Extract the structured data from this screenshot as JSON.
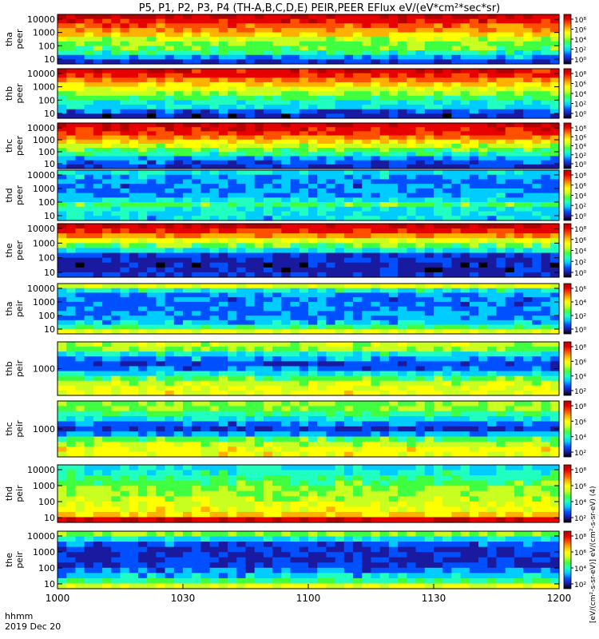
{
  "title": "P5, P1, P2, P3, P4 (TH-A,B,C,D,E) PEIR,PEER EFlux eV/(eV*cm²*sec*sr)",
  "x_axis_label_line1": "hhmm",
  "x_axis_label_line2": "2019 Dec 20",
  "colorbar_side_text": "[eV/(cm²-s-sr-eV)] eV/(cm²-s-sr-eV) (4)",
  "chart_data": {
    "type": "heatmap",
    "x_ticks": [
      "1000",
      "1030",
      "1100",
      "1130",
      "1200"
    ],
    "x_range": [
      "10:00",
      "12:00"
    ],
    "colormap": [
      "#000000",
      "#1a1aa0",
      "#0050ff",
      "#00ccff",
      "#20ffc0",
      "#40ff40",
      "#c8ff20",
      "#ffff00",
      "#ffb000",
      "#ff5000",
      "#e60000",
      "#b40000"
    ],
    "panels": [
      {
        "name": "tha peer",
        "label1": "tha",
        "label2": "peer",
        "y_ticks": [
          "10000",
          "1000",
          "100",
          "10"
        ],
        "cb_ticks": [
          "10⁸",
          "10⁶",
          "10⁴",
          "10²",
          "10⁰"
        ],
        "level_profile": [
          0.95,
          0.9,
          0.82,
          0.75,
          0.68,
          0.55,
          0.5,
          0.46,
          0.38,
          0.25,
          0.12
        ]
      },
      {
        "name": "thb peer",
        "label1": "thb",
        "label2": "peer",
        "y_ticks": [
          "10000",
          "1000",
          "100",
          "10"
        ],
        "cb_ticks": [
          "10⁸",
          "10⁶",
          "10⁴",
          "10²",
          "10⁰"
        ],
        "level_profile": [
          0.92,
          0.88,
          0.8,
          0.7,
          0.6,
          0.5,
          0.42,
          0.34,
          0.3,
          0.18,
          0.1
        ]
      },
      {
        "name": "thc peer",
        "label1": "thc",
        "label2": "peer",
        "y_ticks": [
          "10000",
          "1000",
          "100",
          "10"
        ],
        "cb_ticks": [
          "10⁸",
          "10⁶",
          "10⁴",
          "10²",
          "10⁰"
        ],
        "level_profile": [
          0.95,
          0.9,
          0.85,
          0.78,
          0.68,
          0.56,
          0.46,
          0.38,
          0.25,
          0.18,
          0.12
        ]
      },
      {
        "name": "thd peer",
        "label1": "thd",
        "label2": "peer",
        "y_ticks": [
          "10000",
          "1000",
          "100",
          "10"
        ],
        "cb_ticks": [
          "10⁸",
          "10⁶",
          "10⁴",
          "10²",
          "10⁰"
        ],
        "level_profile": [
          0.3,
          0.25,
          0.22,
          0.2,
          0.22,
          0.25,
          0.3,
          0.45,
          0.32,
          0.3,
          0.28
        ]
      },
      {
        "name": "the peer",
        "label1": "the",
        "label2": "peer",
        "y_ticks": [
          "10000",
          "1000",
          "100",
          "10"
        ],
        "cb_ticks": [
          "10⁸",
          "10⁶",
          "10⁴",
          "10²",
          "10⁰"
        ],
        "level_profile": [
          0.95,
          0.88,
          0.75,
          0.6,
          0.45,
          0.3,
          0.15,
          0.12,
          0.1,
          0.1,
          0.15
        ]
      },
      {
        "name": "tha peir",
        "label1": "tha",
        "label2": "peir",
        "y_ticks": [
          "10000",
          "1000",
          "100",
          "10"
        ],
        "cb_ticks": [
          "10⁶",
          "10⁴",
          "10²",
          "10⁰"
        ],
        "level_profile": [
          0.6,
          0.35,
          0.22,
          0.2,
          0.2,
          0.2,
          0.22,
          0.24,
          0.28,
          0.4,
          0.6
        ]
      },
      {
        "name": "thb peir",
        "label1": "thb",
        "label2": "peir",
        "y_ticks": [
          "1000"
        ],
        "cb_ticks": [
          "10⁸",
          "10⁶",
          "10⁴",
          "10²"
        ],
        "level_profile": [
          0.55,
          0.5,
          0.35,
          0.25,
          0.15,
          0.2,
          0.3,
          0.45,
          0.55,
          0.6,
          0.62
        ]
      },
      {
        "name": "thc peir",
        "label1": "thc",
        "label2": "peir",
        "y_ticks": [
          "1000"
        ],
        "cb_ticks": [
          "10⁸",
          "10⁶",
          "10⁴",
          "10²"
        ],
        "level_profile": [
          0.5,
          0.5,
          0.4,
          0.3,
          0.2,
          0.12,
          0.25,
          0.45,
          0.55,
          0.62,
          0.62
        ]
      },
      {
        "name": "thd peir",
        "label1": "thd",
        "label2": "peir",
        "y_ticks": [
          "10000",
          "1000",
          "100",
          "10"
        ],
        "cb_ticks": [
          "10⁸",
          "10⁶",
          "10⁴",
          "10²"
        ],
        "level_profile": [
          0.3,
          0.35,
          0.4,
          0.45,
          0.5,
          0.52,
          0.55,
          0.58,
          0.62,
          0.7,
          0.95
        ]
      },
      {
        "name": "the peir",
        "label1": "the",
        "label2": "peir",
        "y_ticks": [
          "10000",
          "1000",
          "100",
          "10"
        ],
        "cb_ticks": [
          "10⁸",
          "10⁶",
          "10⁴",
          "10²"
        ],
        "level_profile": [
          0.5,
          0.3,
          0.18,
          0.12,
          0.12,
          0.12,
          0.15,
          0.2,
          0.28,
          0.4,
          0.6
        ]
      }
    ]
  }
}
